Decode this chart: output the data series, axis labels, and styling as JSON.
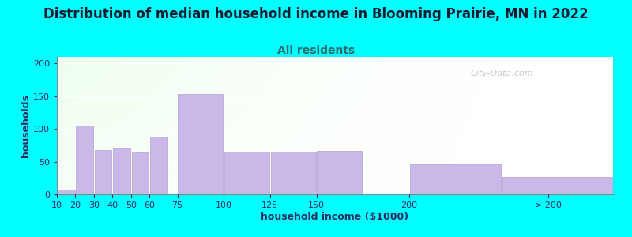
{
  "title": "Distribution of median household income in Blooming Prairie, MN in 2022",
  "subtitle": "All residents",
  "xlabel": "household income ($1000)",
  "ylabel": "households",
  "background_color": "#00FFFF",
  "bar_color": "#c9b8e8",
  "bar_edge_color": "#b8a8d8",
  "values": [
    7,
    105,
    67,
    71,
    64,
    88,
    153,
    65,
    65,
    66,
    46,
    26
  ],
  "bar_lefts": [
    10,
    20,
    30,
    40,
    50,
    60,
    75,
    100,
    125,
    150,
    200,
    250
  ],
  "bar_widths": [
    10,
    10,
    10,
    10,
    10,
    10,
    25,
    25,
    25,
    25,
    50,
    60
  ],
  "xlim": [
    10,
    310
  ],
  "ylim": [
    0,
    210
  ],
  "yticks": [
    0,
    50,
    100,
    150,
    200
  ],
  "xtick_positions": [
    10,
    20,
    30,
    40,
    50,
    60,
    75,
    100,
    125,
    150,
    200,
    275
  ],
  "xtick_labels": [
    "10",
    "20",
    "30",
    "40",
    "50",
    "60",
    "75",
    "100",
    "125",
    "150",
    "200",
    "> 200"
  ],
  "title_fontsize": 12,
  "subtitle_fontsize": 10,
  "axis_label_fontsize": 9,
  "tick_fontsize": 8,
  "title_color": "#1a1a2e",
  "subtitle_color": "#2e6b6b",
  "axis_label_color": "#2e2e5e",
  "tick_color": "#2e2e5e",
  "watermark_text": "City-Data.com"
}
